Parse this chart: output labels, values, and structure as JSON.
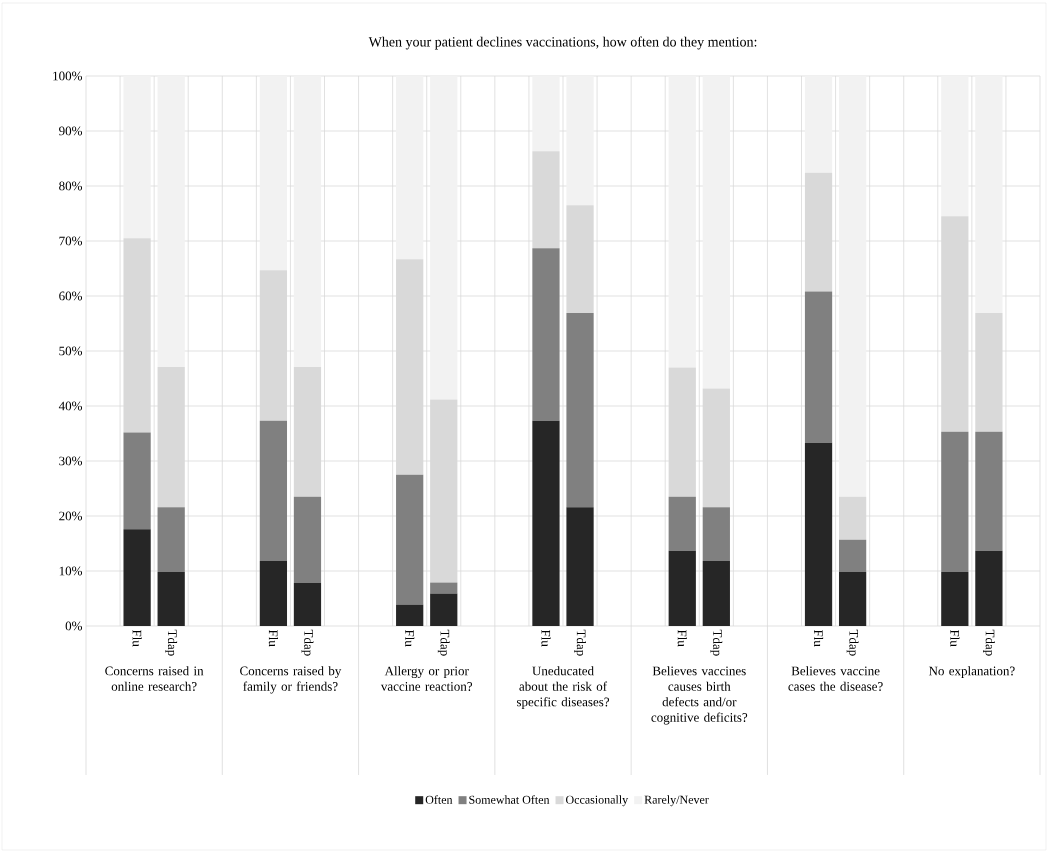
{
  "chart_data": {
    "type": "bar",
    "stacked": true,
    "title": "When your patient declines vaccinations, how often do they mention:",
    "categories": [
      "Flu",
      "Tdap",
      "Flu",
      "Tdap",
      "Flu",
      "Tdap",
      "Flu",
      "Tdap",
      "Flu",
      "Tdap",
      "Flu",
      "Tdap",
      "Flu",
      "Tdap"
    ],
    "annotations": [
      "Concerns raised in online research?",
      "Concerns raised by family or friends?",
      "Allergy or prior vaccine reaction?",
      "Uneducated about the risk of specific diseases?",
      "Believes vaccines causes birth defects and/or cognitive deficits?",
      "Believes vaccine cases the disease?",
      "No explanation?"
    ],
    "series": [
      {
        "name": "Often",
        "color": "#262626",
        "values": [
          17.6,
          9.8,
          11.8,
          7.8,
          3.9,
          5.9,
          37.3,
          21.6,
          13.7,
          11.8,
          33.3,
          9.8,
          9.8,
          13.7
        ]
      },
      {
        "name": "Somewhat Often",
        "color": "#808080",
        "values": [
          17.6,
          11.8,
          25.5,
          15.7,
          23.6,
          2.0,
          31.4,
          35.3,
          9.8,
          9.8,
          27.5,
          5.9,
          25.5,
          21.6
        ]
      },
      {
        "name": "Occasionally",
        "color": "#d9d9d9",
        "values": [
          35.3,
          25.5,
          27.4,
          23.6,
          39.2,
          33.3,
          17.6,
          19.6,
          23.5,
          21.6,
          21.6,
          7.8,
          39.2,
          21.6
        ]
      },
      {
        "name": "Rarely/Never",
        "color": "#f2f2f2",
        "values": [
          29.5,
          52.9,
          35.3,
          52.9,
          33.3,
          58.8,
          13.7,
          23.5,
          53.0,
          56.8,
          17.6,
          76.5,
          25.5,
          43.1
        ]
      }
    ],
    "ylim": [
      0,
      100
    ],
    "yticks": [
      {
        "value": 0,
        "label": "0%"
      },
      {
        "value": 10,
        "label": "10%"
      },
      {
        "value": 20,
        "label": "20%"
      },
      {
        "value": 30,
        "label": "30%"
      },
      {
        "value": 40,
        "label": "40%"
      },
      {
        "value": 50,
        "label": "50%"
      },
      {
        "value": 60,
        "label": "60%"
      },
      {
        "value": 70,
        "label": "70%"
      },
      {
        "value": 80,
        "label": "80%"
      },
      {
        "value": 90,
        "label": "90%"
      },
      {
        "value": 100,
        "label": "100%"
      }
    ],
    "grid": true,
    "legend": "bottom"
  }
}
